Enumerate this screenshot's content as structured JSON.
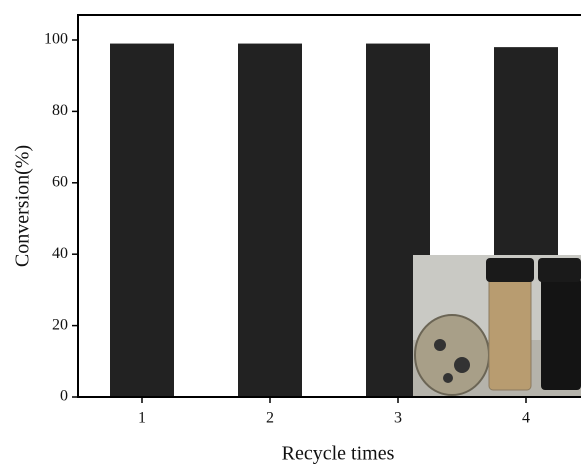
{
  "chart_data": {
    "type": "bar",
    "x_label": "Recycle times",
    "y_label": "Conversion(%)",
    "categories": [
      "1",
      "2",
      "3",
      "4"
    ],
    "values": [
      99,
      99,
      99,
      98
    ],
    "color": "#222222",
    "ylim": [
      0,
      107
    ],
    "yticks": [
      0,
      20,
      40,
      60,
      80,
      100
    ]
  }
}
